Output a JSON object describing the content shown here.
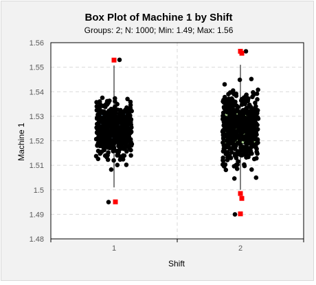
{
  "chart_data": {
    "type": "box",
    "title": "Box Plot of Machine 1 by Shift",
    "subtitle": "Groups: 2; N: 1000; Min: 1.49; Max: 1.56",
    "xlabel": "Shift",
    "ylabel": "Machine 1",
    "ylim": [
      1.48,
      1.56
    ],
    "yticks": [
      1.48,
      1.49,
      1.5,
      1.51,
      1.52,
      1.53,
      1.54,
      1.55,
      1.56
    ],
    "ytick_labels": [
      "1.48",
      "1.49",
      "1.5",
      "1.51",
      "1.52",
      "1.53",
      "1.54",
      "1.55",
      "1.56"
    ],
    "categories": [
      "1",
      "2"
    ],
    "grid": true,
    "groups": [
      {
        "name": "1",
        "color": "#9dc3e6",
        "q1": 1.5206,
        "median": 1.5242,
        "q3": 1.5311,
        "whisker_low": 1.501,
        "whisker_high": 1.5507,
        "outliers": [
          1.5529,
          1.4951
        ],
        "points_min": 1.495,
        "points_max": 1.553
      },
      {
        "name": "2",
        "color": "#a9d18e",
        "q1": 1.5188,
        "median": 1.5255,
        "q3": 1.5323,
        "whisker_low": 1.5,
        "whisker_high": 1.551,
        "outliers": [
          1.5565,
          1.5557,
          1.4985,
          1.4965,
          1.4902
        ],
        "points_min": 1.49,
        "points_max": 1.5565
      }
    ],
    "point_color": "#000000",
    "outlier_color": "#ff0000"
  }
}
